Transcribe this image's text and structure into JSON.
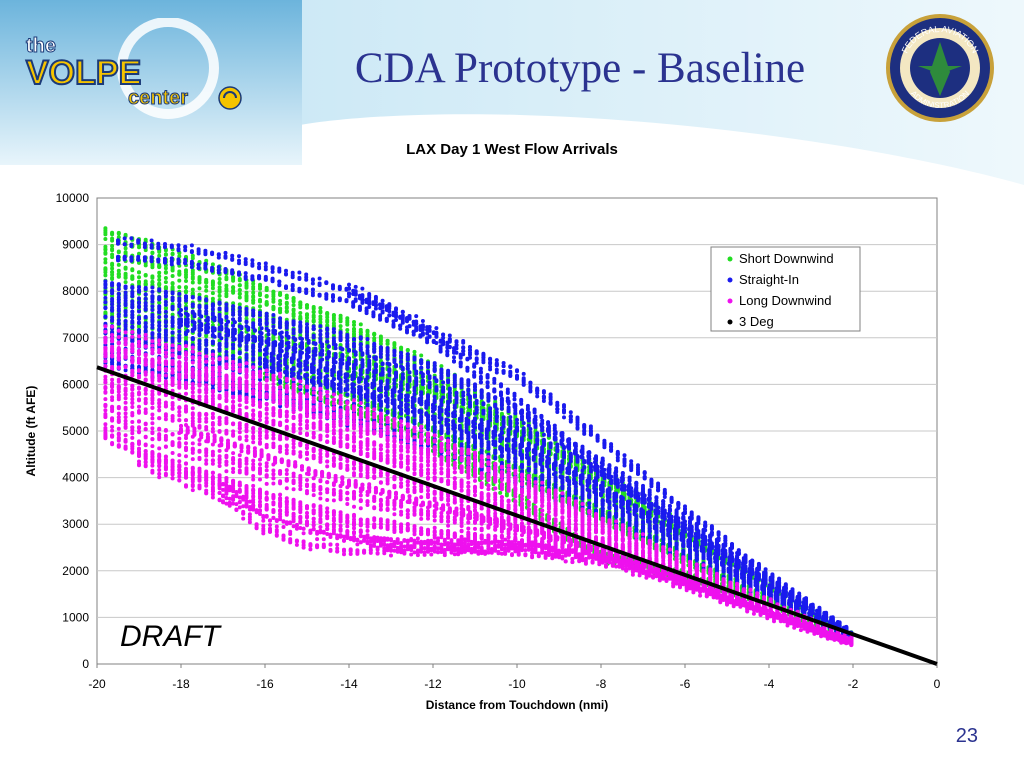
{
  "slide": {
    "title": "CDA Prototype - Baseline",
    "page_number": "23",
    "watermark": "DRAFT",
    "colors": {
      "title": "#2b3390",
      "header_light": "#cde9f6",
      "header_dark": "#6cb4dc"
    }
  },
  "logos": {
    "volpe": {
      "line1": "the",
      "line2": "VOLPE",
      "line3": "center"
    },
    "faa": {
      "top": "FEDERAL AVIATION",
      "bottom": "ADMINISTRATION"
    }
  },
  "chart_data": {
    "type": "scatter",
    "title": "LAX Day 1 West Flow Arrivals",
    "xlabel": "Distance from Touchdown (nmi)",
    "ylabel": "Altitude (ft AFE)",
    "xlim": [
      -20,
      0
    ],
    "ylim": [
      0,
      10000
    ],
    "xticks": [
      -20,
      -18,
      -16,
      -14,
      -12,
      -10,
      -8,
      -6,
      -4,
      -2,
      0
    ],
    "yticks": [
      0,
      1000,
      2000,
      3000,
      4000,
      5000,
      6000,
      7000,
      8000,
      9000,
      10000
    ],
    "grid": "horizontal",
    "legend_position": "top-right",
    "series": [
      {
        "name": "Short Downwind",
        "color": "#22dd22",
        "trajectories": [
          [
            [
              -19.8,
              9100
            ],
            [
              -18,
              8600
            ],
            [
              -16,
              7900
            ],
            [
              -14,
              7200
            ],
            [
              -12,
              6300
            ],
            [
              -10,
              5200
            ],
            [
              -8,
              4100
            ],
            [
              -6,
              2900
            ],
            [
              -4,
              1700
            ],
            [
              -2,
              600
            ]
          ],
          [
            [
              -19.8,
              8700
            ],
            [
              -18,
              8200
            ],
            [
              -16,
              7600
            ],
            [
              -14,
              6900
            ],
            [
              -12,
              6000
            ],
            [
              -10,
              5000
            ],
            [
              -8,
              3900
            ],
            [
              -6,
              2800
            ],
            [
              -4,
              1600
            ],
            [
              -2,
              560
            ]
          ],
          [
            [
              -19.8,
              8300
            ],
            [
              -18,
              7800
            ],
            [
              -16,
              7300
            ],
            [
              -14,
              6600
            ],
            [
              -12,
              5700
            ],
            [
              -10,
              4700
            ],
            [
              -8,
              3700
            ],
            [
              -6,
              2600
            ],
            [
              -4,
              1500
            ],
            [
              -2,
              550
            ]
          ],
          [
            [
              -19.8,
              7800
            ],
            [
              -18,
              7400
            ],
            [
              -16,
              6900
            ],
            [
              -14,
              6300
            ],
            [
              -12,
              5500
            ],
            [
              -10,
              4600
            ],
            [
              -8,
              3600
            ],
            [
              -6,
              2500
            ],
            [
              -4,
              1450
            ],
            [
              -2,
              540
            ]
          ],
          [
            [
              -19.8,
              7300
            ],
            [
              -18,
              6900
            ],
            [
              -16,
              6500
            ],
            [
              -14,
              5900
            ],
            [
              -12,
              5200
            ],
            [
              -10,
              4300
            ],
            [
              -8,
              3400
            ],
            [
              -6,
              2400
            ],
            [
              -4,
              1400
            ],
            [
              -2,
              520
            ]
          ],
          [
            [
              -16,
              6300
            ],
            [
              -14,
              5600
            ],
            [
              -12,
              4900
            ],
            [
              -10,
              4100
            ],
            [
              -8,
              3200
            ],
            [
              -6,
              2250
            ],
            [
              -4,
              1350
            ],
            [
              -2,
              510
            ]
          ],
          [
            [
              -14,
              6400
            ],
            [
              -12,
              5900
            ],
            [
              -10,
              5000
            ],
            [
              -8,
              4000
            ],
            [
              -6,
              2800
            ],
            [
              -4,
              1700
            ],
            [
              -2,
              600
            ]
          ],
          [
            [
              -12,
              4700
            ],
            [
              -10,
              3600
            ],
            [
              -9,
              2900
            ],
            [
              -8,
              2300
            ],
            [
              -6,
              1900
            ],
            [
              -4,
              1350
            ],
            [
              -2,
              500
            ]
          ]
        ]
      },
      {
        "name": "Straight-In",
        "color": "#1a1aee",
        "trajectories": [
          [
            [
              -19.5,
              8900
            ],
            [
              -18,
              8800
            ],
            [
              -16,
              8400
            ],
            [
              -14,
              7900
            ],
            [
              -12,
              7000
            ],
            [
              -10,
              5600
            ],
            [
              -8,
              4200
            ],
            [
              -6,
              2900
            ],
            [
              -4,
              1700
            ],
            [
              -2,
              600
            ]
          ],
          [
            [
              -19.8,
              8000
            ],
            [
              -18,
              7700
            ],
            [
              -16,
              7300
            ],
            [
              -14,
              6900
            ],
            [
              -12,
              6300
            ],
            [
              -10,
              5400
            ],
            [
              -8,
              4300
            ],
            [
              -6,
              3100
            ],
            [
              -4,
              1800
            ],
            [
              -2,
              620
            ]
          ],
          [
            [
              -19.8,
              7600
            ],
            [
              -18,
              7200
            ],
            [
              -16,
              6800
            ],
            [
              -14,
              6300
            ],
            [
              -12,
              5600
            ],
            [
              -10,
              4800
            ],
            [
              -8,
              3800
            ],
            [
              -6,
              2700
            ],
            [
              -4,
              1600
            ],
            [
              -2,
              560
            ]
          ],
          [
            [
              -19.8,
              7200
            ],
            [
              -18,
              6800
            ],
            [
              -16,
              6400
            ],
            [
              -14,
              5900
            ],
            [
              -12,
              5200
            ],
            [
              -10,
              4400
            ],
            [
              -8,
              3500
            ],
            [
              -6,
              2500
            ],
            [
              -4,
              1500
            ],
            [
              -2,
              540
            ]
          ],
          [
            [
              -19.8,
              6900
            ],
            [
              -18,
              6500
            ],
            [
              -16,
              6000
            ],
            [
              -14,
              5500
            ],
            [
              -12,
              4900
            ],
            [
              -10,
              4100
            ],
            [
              -8,
              3300
            ],
            [
              -6,
              2350
            ],
            [
              -4,
              1450
            ],
            [
              -2,
              520
            ]
          ],
          [
            [
              -19.8,
              6500
            ],
            [
              -18,
              6100
            ],
            [
              -16,
              5700
            ],
            [
              -14,
              5200
            ],
            [
              -12,
              4600
            ],
            [
              -10,
              3900
            ],
            [
              -8,
              3100
            ],
            [
              -6,
              2200
            ],
            [
              -4,
              1350
            ],
            [
              -2,
              500
            ]
          ],
          [
            [
              -18,
              7400
            ],
            [
              -16,
              7000
            ],
            [
              -14,
              6600
            ],
            [
              -12,
              6000
            ],
            [
              -10,
              5100
            ],
            [
              -8,
              4100
            ],
            [
              -6,
              2950
            ],
            [
              -4,
              1750
            ],
            [
              -2,
              600
            ]
          ],
          [
            [
              -14,
              8000
            ],
            [
              -13,
              7600
            ],
            [
              -12,
              7100
            ],
            [
              -10,
              6200
            ],
            [
              -8,
              4800
            ],
            [
              -6,
              3300
            ],
            [
              -4,
              1900
            ],
            [
              -2,
              650
            ]
          ],
          [
            [
              -16,
              6500
            ],
            [
              -14,
              6000
            ],
            [
              -12,
              5400
            ],
            [
              -10,
              4600
            ],
            [
              -8,
              3700
            ],
            [
              -6,
              2650
            ],
            [
              -4,
              1550
            ],
            [
              -2,
              540
            ]
          ]
        ]
      },
      {
        "name": "Long Downwind",
        "color": "#ee11ee",
        "trajectories": [
          [
            [
              -19.8,
              7000
            ],
            [
              -18,
              6600
            ],
            [
              -16,
              6100
            ],
            [
              -14,
              5500
            ],
            [
              -12,
              4800
            ],
            [
              -10,
              4000
            ],
            [
              -8,
              3100
            ],
            [
              -6,
              2200
            ],
            [
              -4,
              1300
            ],
            [
              -2,
              500
            ]
          ],
          [
            [
              -19.8,
              6600
            ],
            [
              -18,
              6200
            ],
            [
              -16,
              5700
            ],
            [
              -14,
              5100
            ],
            [
              -12,
              4400
            ],
            [
              -10,
              3700
            ],
            [
              -8,
              2900
            ],
            [
              -6,
              2050
            ],
            [
              -4,
              1250
            ],
            [
              -2,
              480
            ]
          ],
          [
            [
              -19.8,
              6200
            ],
            [
              -18,
              5900
            ],
            [
              -16,
              5400
            ],
            [
              -14,
              4800
            ],
            [
              -12,
              4100
            ],
            [
              -10,
              3400
            ],
            [
              -8,
              2750
            ],
            [
              -6,
              1950
            ],
            [
              -4,
              1200
            ],
            [
              -2,
              470
            ]
          ],
          [
            [
              -19.8,
              5800
            ],
            [
              -18,
              5400
            ],
            [
              -16,
              4900
            ],
            [
              -14,
              4300
            ],
            [
              -12,
              3700
            ],
            [
              -10,
              3100
            ],
            [
              -8,
              2600
            ],
            [
              -6,
              1900
            ],
            [
              -4,
              1150
            ],
            [
              -2,
              460
            ]
          ],
          [
            [
              -19.8,
              5300
            ],
            [
              -18,
              4700
            ],
            [
              -16,
              4100
            ],
            [
              -14,
              3600
            ],
            [
              -12,
              3200
            ],
            [
              -10,
              2900
            ],
            [
              -8,
              2500
            ],
            [
              -6,
              1850
            ],
            [
              -4,
              1150
            ],
            [
              -2,
              460
            ]
          ],
          [
            [
              -19.8,
              4900
            ],
            [
              -18,
              4200
            ],
            [
              -16,
              3600
            ],
            [
              -14,
              3100
            ],
            [
              -12,
              2800
            ],
            [
              -10,
              2650
            ],
            [
              -8,
              2400
            ],
            [
              -6,
              1800
            ],
            [
              -4,
              1100
            ],
            [
              -2,
              450
            ]
          ],
          [
            [
              -19,
              4400
            ],
            [
              -18,
              4000
            ],
            [
              -16,
              3300
            ],
            [
              -14,
              2800
            ],
            [
              -13,
              2550
            ],
            [
              -12,
              2500
            ],
            [
              -10,
              2500
            ],
            [
              -8,
              2300
            ],
            [
              -6,
              1750
            ],
            [
              -4,
              1100
            ],
            [
              -2,
              450
            ]
          ],
          [
            [
              -17,
              3700
            ],
            [
              -16,
              3000
            ],
            [
              -15,
              2700
            ],
            [
              -14,
              2550
            ],
            [
              -12,
              2520
            ],
            [
              -10,
              2500
            ],
            [
              -8,
              2250
            ],
            [
              -6,
              1700
            ],
            [
              -4,
              1050
            ],
            [
              -2,
              440
            ]
          ],
          [
            [
              -18,
              5200
            ],
            [
              -16,
              4600
            ],
            [
              -14,
              4000
            ],
            [
              -12,
              3500
            ],
            [
              -10,
              3000
            ],
            [
              -8,
              2500
            ],
            [
              -6,
              1850
            ],
            [
              -4,
              1150
            ],
            [
              -2,
              460
            ]
          ]
        ]
      },
      {
        "name": "3 Deg",
        "color": "#000000",
        "trajectories": [
          [
            [
              -20,
              6370
            ],
            [
              0,
              0
            ]
          ]
        ]
      }
    ]
  }
}
